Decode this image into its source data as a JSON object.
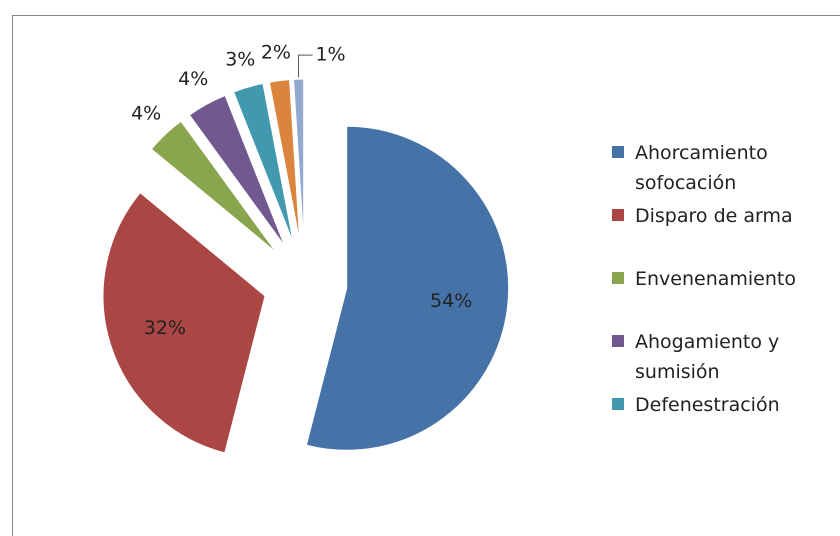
{
  "chart_data": {
    "type": "pie",
    "categories": [
      "Ahorcamiento sofocación",
      "Disparo de arma",
      "Envenenamiento",
      "Ahogamiento y sumisión",
      "Defenestración",
      null,
      null
    ],
    "values": [
      54,
      32,
      4,
      4,
      3,
      2,
      1
    ],
    "value_labels": [
      "54%",
      "32%",
      "4%",
      "4%",
      "3%",
      "2%",
      "1%"
    ],
    "colors": [
      "#4572A7",
      "#AA4643",
      "#89A54E",
      "#71588F",
      "#4198AF",
      "#DB843D",
      "#93A9CF"
    ],
    "legend": "right"
  }
}
